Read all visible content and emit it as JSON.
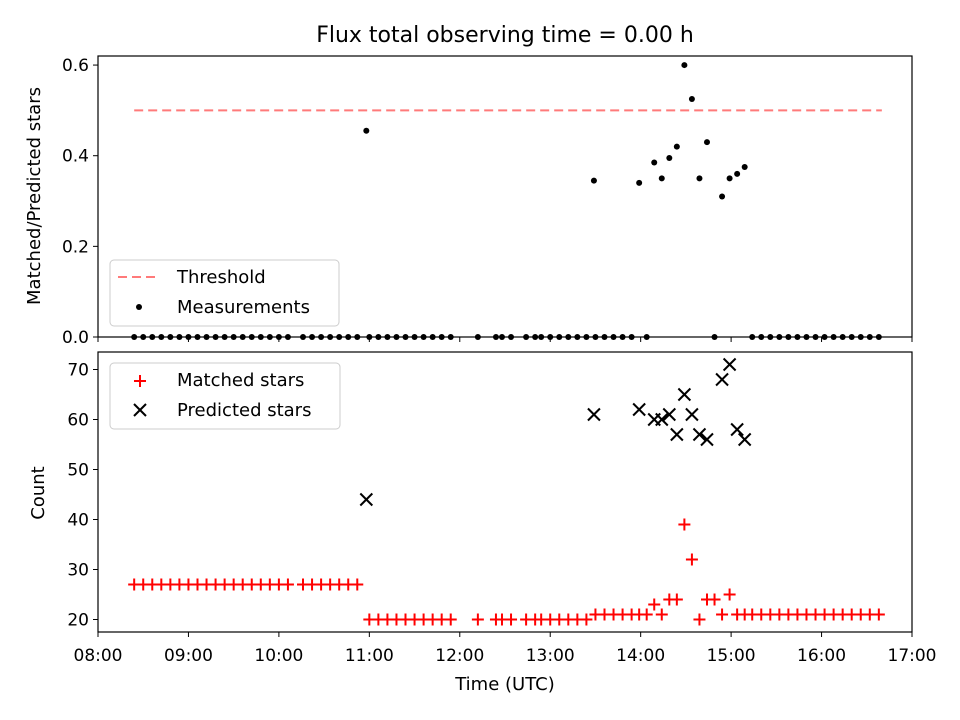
{
  "chart_data": [
    {
      "type": "scatter",
      "title": "Flux total observing time = 0.00 h",
      "ylabel": "Matched/Predicted stars",
      "xlabel": "",
      "xlim": [
        "08:00",
        "17:00"
      ],
      "ylim": [
        0,
        0.62
      ],
      "yticks": [
        0.0,
        0.2,
        0.4,
        0.6
      ],
      "ytick_labels": [
        "0.0",
        "0.2",
        "0.4",
        "0.6"
      ],
      "threshold": {
        "name": "Threshold",
        "y": 0.5,
        "x_start": "08:24",
        "x_end": "16:40",
        "color": "#ff7a7a",
        "style": "dashed"
      },
      "series": [
        {
          "name": "Measurements",
          "color": "#000000",
          "marker": "dot",
          "points": [
            [
              "08:24",
              0
            ],
            [
              "08:30",
              0
            ],
            [
              "08:36",
              0
            ],
            [
              "08:42",
              0
            ],
            [
              "08:48",
              0
            ],
            [
              "08:54",
              0
            ],
            [
              "09:00",
              0
            ],
            [
              "09:06",
              0
            ],
            [
              "09:12",
              0
            ],
            [
              "09:18",
              0
            ],
            [
              "09:24",
              0
            ],
            [
              "09:30",
              0
            ],
            [
              "09:36",
              0
            ],
            [
              "09:42",
              0
            ],
            [
              "09:48",
              0
            ],
            [
              "09:54",
              0
            ],
            [
              "10:00",
              0
            ],
            [
              "10:06",
              0
            ],
            [
              "10:16",
              0
            ],
            [
              "10:22",
              0
            ],
            [
              "10:28",
              0
            ],
            [
              "10:34",
              0
            ],
            [
              "10:40",
              0
            ],
            [
              "10:46",
              0
            ],
            [
              "10:52",
              0
            ],
            [
              "10:58",
              0.455
            ],
            [
              "11:00",
              0
            ],
            [
              "11:06",
              0
            ],
            [
              "11:12",
              0
            ],
            [
              "11:18",
              0
            ],
            [
              "11:24",
              0
            ],
            [
              "11:30",
              0
            ],
            [
              "11:36",
              0
            ],
            [
              "11:42",
              0
            ],
            [
              "11:48",
              0
            ],
            [
              "11:54",
              0
            ],
            [
              "12:12",
              0
            ],
            [
              "12:24",
              0
            ],
            [
              "12:28",
              0
            ],
            [
              "12:34",
              0
            ],
            [
              "12:44",
              0
            ],
            [
              "12:50",
              0
            ],
            [
              "12:54",
              0
            ],
            [
              "13:00",
              0
            ],
            [
              "13:06",
              0
            ],
            [
              "13:12",
              0
            ],
            [
              "13:18",
              0
            ],
            [
              "13:24",
              0
            ],
            [
              "13:30",
              0
            ],
            [
              "13:29",
              0.345
            ],
            [
              "13:36",
              0
            ],
            [
              "13:42",
              0
            ],
            [
              "13:48",
              0
            ],
            [
              "13:54",
              0
            ],
            [
              "13:59",
              0.34
            ],
            [
              "14:04",
              0
            ],
            [
              "14:09",
              0.385
            ],
            [
              "14:14",
              0.35
            ],
            [
              "14:19",
              0.395
            ],
            [
              "14:24",
              0.42
            ],
            [
              "14:29",
              0.6
            ],
            [
              "14:34",
              0.525
            ],
            [
              "14:39",
              0.35
            ],
            [
              "14:44",
              0.43
            ],
            [
              "14:49",
              0
            ],
            [
              "14:54",
              0.31
            ],
            [
              "14:59",
              0.35
            ],
            [
              "15:04",
              0.36
            ],
            [
              "15:09",
              0.375
            ],
            [
              "15:14",
              0
            ],
            [
              "15:20",
              0
            ],
            [
              "15:26",
              0
            ],
            [
              "15:32",
              0
            ],
            [
              "15:38",
              0
            ],
            [
              "15:44",
              0
            ],
            [
              "15:50",
              0
            ],
            [
              "15:56",
              0
            ],
            [
              "16:02",
              0
            ],
            [
              "16:08",
              0
            ],
            [
              "16:14",
              0
            ],
            [
              "16:20",
              0
            ],
            [
              "16:26",
              0
            ],
            [
              "16:32",
              0
            ],
            [
              "16:38",
              0
            ]
          ]
        }
      ],
      "legend": {
        "position": "lower-left",
        "entries": [
          "Threshold",
          "Measurements"
        ]
      }
    },
    {
      "type": "scatter",
      "title": "",
      "ylabel": "Count",
      "xlabel": "Time (UTC)",
      "xlim": [
        "08:00",
        "17:00"
      ],
      "ylim": [
        17.5,
        73.5
      ],
      "yticks": [
        20,
        30,
        40,
        50,
        60,
        70
      ],
      "ytick_labels": [
        "20",
        "30",
        "40",
        "50",
        "60",
        "70"
      ],
      "xticks": [
        "08:00",
        "09:00",
        "10:00",
        "11:00",
        "12:00",
        "13:00",
        "14:00",
        "15:00",
        "16:00",
        "17:00"
      ],
      "series": [
        {
          "name": "Matched stars",
          "color": "#ff0000",
          "marker": "plus",
          "points": [
            [
              "08:24",
              27
            ],
            [
              "08:30",
              27
            ],
            [
              "08:36",
              27
            ],
            [
              "08:42",
              27
            ],
            [
              "08:48",
              27
            ],
            [
              "08:54",
              27
            ],
            [
              "09:00",
              27
            ],
            [
              "09:06",
              27
            ],
            [
              "09:12",
              27
            ],
            [
              "09:18",
              27
            ],
            [
              "09:24",
              27
            ],
            [
              "09:30",
              27
            ],
            [
              "09:36",
              27
            ],
            [
              "09:42",
              27
            ],
            [
              "09:48",
              27
            ],
            [
              "09:54",
              27
            ],
            [
              "10:00",
              27
            ],
            [
              "10:06",
              27
            ],
            [
              "10:16",
              27
            ],
            [
              "10:22",
              27
            ],
            [
              "10:28",
              27
            ],
            [
              "10:34",
              27
            ],
            [
              "10:40",
              27
            ],
            [
              "10:46",
              27
            ],
            [
              "10:52",
              27
            ],
            [
              "11:00",
              20
            ],
            [
              "11:06",
              20
            ],
            [
              "11:12",
              20
            ],
            [
              "11:18",
              20
            ],
            [
              "11:24",
              20
            ],
            [
              "11:30",
              20
            ],
            [
              "11:36",
              20
            ],
            [
              "11:42",
              20
            ],
            [
              "11:48",
              20
            ],
            [
              "11:54",
              20
            ],
            [
              "12:12",
              20
            ],
            [
              "12:24",
              20
            ],
            [
              "12:28",
              20
            ],
            [
              "12:34",
              20
            ],
            [
              "12:44",
              20
            ],
            [
              "12:50",
              20
            ],
            [
              "12:54",
              20
            ],
            [
              "13:00",
              20
            ],
            [
              "13:06",
              20
            ],
            [
              "13:12",
              20
            ],
            [
              "13:18",
              20
            ],
            [
              "13:24",
              20
            ],
            [
              "13:30",
              21
            ],
            [
              "13:36",
              21
            ],
            [
              "13:42",
              21
            ],
            [
              "13:48",
              21
            ],
            [
              "13:54",
              21
            ],
            [
              "13:59",
              21
            ],
            [
              "14:04",
              21
            ],
            [
              "14:09",
              23
            ],
            [
              "14:14",
              21
            ],
            [
              "14:19",
              24
            ],
            [
              "14:24",
              24
            ],
            [
              "14:29",
              39
            ],
            [
              "14:34",
              32
            ],
            [
              "14:39",
              20
            ],
            [
              "14:44",
              24
            ],
            [
              "14:49",
              24
            ],
            [
              "14:54",
              21
            ],
            [
              "14:59",
              25
            ],
            [
              "15:04",
              21
            ],
            [
              "15:09",
              21
            ],
            [
              "15:14",
              21
            ],
            [
              "15:20",
              21
            ],
            [
              "15:26",
              21
            ],
            [
              "15:32",
              21
            ],
            [
              "15:38",
              21
            ],
            [
              "15:44",
              21
            ],
            [
              "15:50",
              21
            ],
            [
              "15:56",
              21
            ],
            [
              "16:02",
              21
            ],
            [
              "16:08",
              21
            ],
            [
              "16:14",
              21
            ],
            [
              "16:20",
              21
            ],
            [
              "16:26",
              21
            ],
            [
              "16:32",
              21
            ],
            [
              "16:38",
              21
            ]
          ]
        },
        {
          "name": "Predicted stars",
          "color": "#000000",
          "marker": "x",
          "points": [
            [
              "10:58",
              44
            ],
            [
              "13:29",
              61
            ],
            [
              "13:59",
              62
            ],
            [
              "14:09",
              60
            ],
            [
              "14:14",
              60
            ],
            [
              "14:19",
              61
            ],
            [
              "14:24",
              57
            ],
            [
              "14:29",
              65
            ],
            [
              "14:34",
              61
            ],
            [
              "14:39",
              57
            ],
            [
              "14:44",
              56
            ],
            [
              "14:54",
              68
            ],
            [
              "14:59",
              71
            ],
            [
              "15:04",
              58
            ],
            [
              "15:09",
              56
            ]
          ]
        }
      ],
      "legend": {
        "position": "upper-left",
        "entries": [
          "Matched stars",
          "Predicted stars"
        ]
      }
    }
  ]
}
